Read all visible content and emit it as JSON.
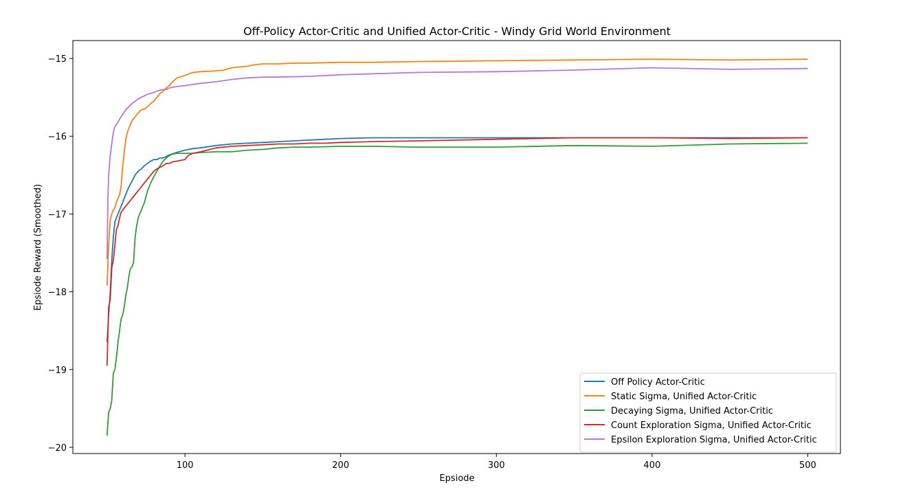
{
  "chart_data": {
    "type": "line",
    "title": "Off-Policy Actor-Critic and Unified Actor-Critic - Windy Grid World Environment",
    "xlabel": "Epsiode",
    "ylabel": "Epsiode Reward (Smoothed)",
    "xlim": [
      28,
      521
    ],
    "ylim": [
      -20.08,
      -14.77
    ],
    "xticks": [
      100,
      200,
      300,
      400,
      500
    ],
    "xtick_labels": [
      "100",
      "200",
      "300",
      "400",
      "500"
    ],
    "yticks": [
      -15,
      -16,
      -17,
      -18,
      -19,
      -20
    ],
    "ytick_labels": [
      "−15",
      "−16",
      "−17",
      "−18",
      "−19",
      "−20"
    ],
    "grid": false,
    "legend_position": "lower-right",
    "series": [
      {
        "name": "Off Policy Actor-Critic",
        "color": "#1f77b4",
        "x": [
          50,
          51,
          52,
          53,
          54,
          55,
          56,
          57,
          58,
          60,
          62,
          64,
          66,
          68,
          70,
          72,
          74,
          76,
          78,
          80,
          82,
          84,
          86,
          88,
          90,
          93,
          96,
          100,
          105,
          110,
          120,
          130,
          140,
          150,
          160,
          170,
          180,
          190,
          200,
          220,
          240,
          260,
          280,
          300,
          320,
          340,
          360,
          380,
          400,
          420,
          440,
          460,
          480,
          500
        ],
        "y": [
          -18.65,
          -18.3,
          -18.0,
          -17.6,
          -17.3,
          -17.1,
          -17.05,
          -17.0,
          -16.95,
          -16.85,
          -16.75,
          -16.65,
          -16.58,
          -16.5,
          -16.45,
          -16.42,
          -16.38,
          -16.35,
          -16.32,
          -16.3,
          -16.3,
          -16.28,
          -16.28,
          -16.26,
          -16.24,
          -16.22,
          -16.2,
          -16.18,
          -16.16,
          -16.15,
          -16.12,
          -16.1,
          -16.09,
          -16.08,
          -16.07,
          -16.06,
          -16.05,
          -16.04,
          -16.03,
          -16.02,
          -16.02,
          -16.02,
          -16.02,
          -16.02,
          -16.02,
          -16.02,
          -16.02,
          -16.02,
          -16.02,
          -16.02,
          -16.02,
          -16.02,
          -16.02,
          -16.02
        ]
      },
      {
        "name": "Static Sigma, Unified Actor-Critic",
        "color": "#ff7f0e",
        "x": [
          50,
          51,
          52,
          53,
          54,
          55,
          56,
          57,
          58,
          59,
          60,
          61,
          62,
          63,
          64,
          65,
          66,
          68,
          70,
          72,
          74,
          76,
          78,
          80,
          82,
          84,
          86,
          88,
          90,
          92,
          95,
          100,
          105,
          110,
          120,
          125,
          130,
          140,
          145,
          150,
          160,
          170,
          180,
          200,
          220,
          250,
          300,
          350,
          400,
          450,
          500
        ],
        "y": [
          -17.92,
          -17.4,
          -17.08,
          -17.0,
          -16.95,
          -16.92,
          -16.85,
          -16.8,
          -16.75,
          -16.65,
          -16.4,
          -16.2,
          -16.05,
          -15.95,
          -15.9,
          -15.85,
          -15.8,
          -15.75,
          -15.7,
          -15.66,
          -15.65,
          -15.62,
          -15.58,
          -15.55,
          -15.5,
          -15.45,
          -15.42,
          -15.38,
          -15.35,
          -15.3,
          -15.25,
          -15.22,
          -15.18,
          -15.17,
          -15.16,
          -15.15,
          -15.12,
          -15.1,
          -15.08,
          -15.07,
          -15.07,
          -15.06,
          -15.06,
          -15.05,
          -15.05,
          -15.04,
          -15.03,
          -15.02,
          -15.01,
          -15.02,
          -15.01
        ]
      },
      {
        "name": "Decaying Sigma, Unified Actor-Critic",
        "color": "#2ca02c",
        "x": [
          50,
          51,
          52,
          53,
          54,
          55,
          56,
          57,
          58,
          59,
          60,
          61,
          62,
          63,
          64,
          65,
          66,
          67,
          68,
          69,
          70,
          71,
          72,
          74,
          76,
          78,
          80,
          82,
          84,
          86,
          88,
          90,
          92,
          95,
          100,
          105,
          110,
          120,
          130,
          140,
          150,
          160,
          170,
          180,
          200,
          220,
          250,
          300,
          350,
          400,
          450,
          500
        ],
        "y": [
          -19.85,
          -19.55,
          -19.5,
          -19.4,
          -19.05,
          -19.0,
          -18.85,
          -18.65,
          -18.5,
          -18.35,
          -18.3,
          -18.2,
          -18.05,
          -17.95,
          -17.8,
          -17.7,
          -17.68,
          -17.62,
          -17.3,
          -17.15,
          -17.05,
          -17.0,
          -16.95,
          -16.85,
          -16.7,
          -16.6,
          -16.52,
          -16.45,
          -16.38,
          -16.32,
          -16.28,
          -16.25,
          -16.23,
          -16.22,
          -16.22,
          -16.22,
          -16.21,
          -16.2,
          -16.2,
          -16.18,
          -16.17,
          -16.15,
          -16.14,
          -16.14,
          -16.13,
          -16.13,
          -16.14,
          -16.14,
          -16.12,
          -16.13,
          -16.1,
          -16.09
        ]
      },
      {
        "name": "Count Exploration Sigma, Unified Actor-Critic",
        "color": "#d62728",
        "x": [
          50,
          51,
          52,
          53,
          54,
          55,
          56,
          57,
          58,
          59,
          60,
          62,
          64,
          66,
          68,
          70,
          72,
          74,
          76,
          78,
          80,
          82,
          84,
          86,
          88,
          90,
          92,
          95,
          100,
          102,
          105,
          110,
          120,
          130,
          140,
          150,
          160,
          170,
          180,
          190,
          200,
          220,
          250,
          300,
          350,
          400,
          450,
          500
        ],
        "y": [
          -18.95,
          -18.2,
          -18.1,
          -17.7,
          -17.6,
          -17.4,
          -17.2,
          -17.15,
          -17.05,
          -16.98,
          -16.95,
          -16.9,
          -16.85,
          -16.8,
          -16.75,
          -16.7,
          -16.65,
          -16.6,
          -16.55,
          -16.5,
          -16.45,
          -16.42,
          -16.4,
          -16.38,
          -16.35,
          -16.35,
          -16.33,
          -16.32,
          -16.3,
          -16.25,
          -16.22,
          -16.2,
          -16.15,
          -16.13,
          -16.12,
          -16.11,
          -16.1,
          -16.1,
          -16.09,
          -16.09,
          -16.08,
          -16.07,
          -16.06,
          -16.04,
          -16.02,
          -16.02,
          -16.03,
          -16.02
        ]
      },
      {
        "name": "Epsilon Exploration Sigma, Unified Actor-Critic",
        "color": "#b377d6",
        "x": [
          50,
          50.5,
          51,
          52,
          53,
          54,
          55,
          56,
          57,
          58,
          60,
          62,
          64,
          66,
          68,
          70,
          72,
          74,
          76,
          78,
          80,
          82,
          84,
          86,
          88,
          90,
          95,
          100,
          110,
          120,
          130,
          140,
          150,
          160,
          180,
          200,
          250,
          300,
          350,
          400,
          450,
          500
        ],
        "y": [
          -17.58,
          -16.8,
          -16.5,
          -16.25,
          -16.1,
          -15.95,
          -15.88,
          -15.85,
          -15.82,
          -15.78,
          -15.72,
          -15.66,
          -15.62,
          -15.58,
          -15.55,
          -15.52,
          -15.5,
          -15.48,
          -15.46,
          -15.45,
          -15.44,
          -15.42,
          -15.41,
          -15.4,
          -15.4,
          -15.38,
          -15.36,
          -15.35,
          -15.32,
          -15.3,
          -15.27,
          -15.25,
          -15.24,
          -15.24,
          -15.23,
          -15.21,
          -15.18,
          -15.17,
          -15.15,
          -15.12,
          -15.14,
          -15.13
        ]
      }
    ]
  }
}
